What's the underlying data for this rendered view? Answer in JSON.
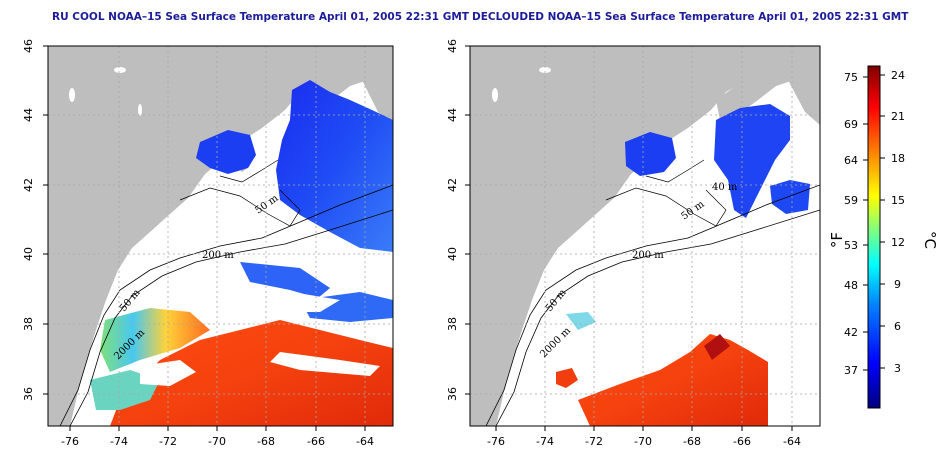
{
  "panels": [
    {
      "id": "left",
      "title": "RU COOL NOAA–15 Sea Surface Temperature April 01, 2005 22:31 GMT",
      "contour_labels": [
        "50 m",
        "200 m",
        "50 m",
        "2000 m"
      ]
    },
    {
      "id": "right",
      "title": "DECLOUDED NOAA–15 Sea Surface Temperature April 01, 2005 22:31 GMT",
      "contour_labels": [
        "40 m",
        "50 m",
        "200 m",
        "50 m",
        "2000 m"
      ]
    }
  ],
  "axes": {
    "lon_ticks": [
      "-76",
      "-74",
      "-72",
      "-70",
      "-68",
      "-66",
      "-64"
    ],
    "lat_ticks": [
      "46",
      "44",
      "42",
      "40",
      "38",
      "36"
    ]
  },
  "colorbar": {
    "fahrenheit_ticks": [
      "75",
      "69",
      "64",
      "59",
      "53",
      "48",
      "42",
      "37"
    ],
    "celsius_ticks": [
      "24",
      "21",
      "18",
      "15",
      "12",
      "9",
      "6",
      "3"
    ],
    "fahrenheit_unit": "°F",
    "celsius_unit": "°C",
    "colors": [
      "#00007f",
      "#0000ff",
      "#0080ff",
      "#00ffff",
      "#80ff80",
      "#ffff00",
      "#ff8000",
      "#ff0000",
      "#7f0000"
    ]
  },
  "colors": {
    "land": "#bebebe",
    "ocean": "#ffffff",
    "title": "#1c1c9a",
    "grid": "#a8a8a8"
  }
}
